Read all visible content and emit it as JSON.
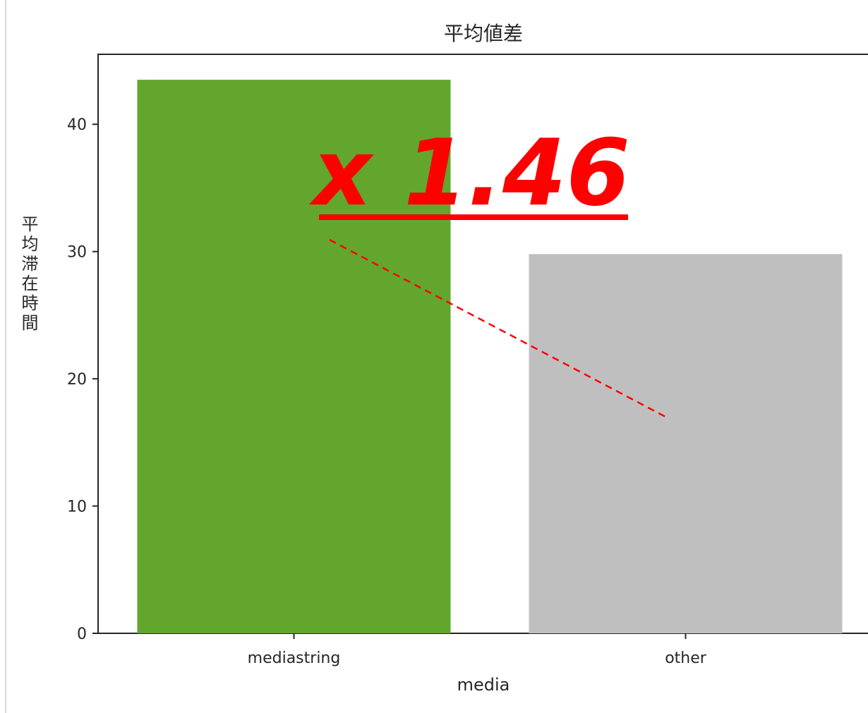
{
  "chart_data": {
    "type": "bar",
    "title": "平均値差",
    "xlabel": "media",
    "ylabel": "平均滞在時間",
    "categories": [
      "mediastring",
      "other"
    ],
    "values": [
      43.5,
      29.8
    ],
    "colors": [
      "#62a62e",
      "#bfbfbf"
    ],
    "ylim": [
      0,
      45.5
    ],
    "yticks": [
      0,
      10,
      20,
      30,
      40
    ],
    "grid": false,
    "annotation": {
      "text": "x 1.46",
      "color": "#ff0000"
    }
  }
}
